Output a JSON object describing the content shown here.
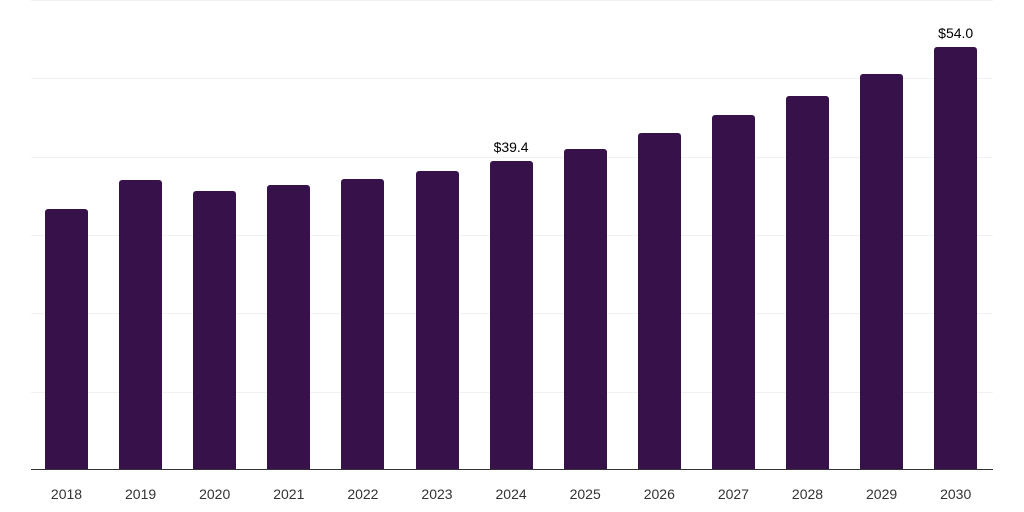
{
  "chart_data": {
    "type": "bar",
    "title": "",
    "xlabel": "",
    "ylabel": "",
    "ylim": [
      0,
      60
    ],
    "grid": true,
    "gridlines": [
      0,
      10,
      20,
      30,
      40,
      50,
      60
    ],
    "bar_color": "#37114a",
    "categories": [
      "2018",
      "2019",
      "2020",
      "2021",
      "2022",
      "2023",
      "2024",
      "2025",
      "2026",
      "2027",
      "2028",
      "2029",
      "2030"
    ],
    "values": [
      33.3,
      37.0,
      35.6,
      36.4,
      37.2,
      38.2,
      39.4,
      41.0,
      43.0,
      45.3,
      47.7,
      50.6,
      54.0
    ],
    "annotations": [
      {
        "category": "2024",
        "text": "$39.4"
      },
      {
        "category": "2030",
        "text": "$54.0"
      }
    ]
  }
}
